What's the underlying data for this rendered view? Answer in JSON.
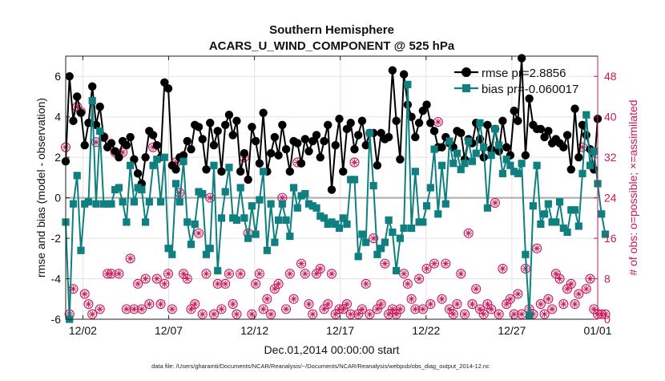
{
  "chart_data": {
    "type": "line",
    "title": "Southern Hemisphere",
    "subtitle": "ACARS_U_WIND_COMPONENT @ 525 hPa",
    "xlabel": "Dec.01,2014 00:00:00 start",
    "ylabel": "rmse and bias (model - observation)",
    "ylabel_right": "# of obs: o=possible; ×=assimilated",
    "footnote": "data file: /Users/gharamti/Documents/NCAR/Reanalysis/~/Documents/NCAR/Reanalysis/webpub/obs_diag_output_2014-12.nc",
    "x_start_day": 1,
    "x_end_day": 32,
    "xlim": [
      1.0,
      32.0
    ],
    "ylim": [
      -6,
      7
    ],
    "ylim_right": [
      0,
      52
    ],
    "x_ticks": [
      {
        "day": 2,
        "label": "12/02"
      },
      {
        "day": 7,
        "label": "12/07"
      },
      {
        "day": 12,
        "label": "12/12"
      },
      {
        "day": 17,
        "label": "12/17"
      },
      {
        "day": 22,
        "label": "12/22"
      },
      {
        "day": 27,
        "label": "12/27"
      },
      {
        "day": 32,
        "label": "01/01"
      }
    ],
    "y_ticks": [
      -6,
      -4,
      -2,
      0,
      2,
      4,
      6
    ],
    "y_ticks_right": [
      0,
      8,
      16,
      24,
      32,
      40,
      48
    ],
    "grid": true,
    "zero_line": true,
    "legend_position": "top-right",
    "legend": [
      {
        "label": "rmse pr=2.8856",
        "color": "#000000",
        "marker": "circle"
      },
      {
        "label": "bias pr=-0.060017",
        "color": "#0f7f7f",
        "marker": "square"
      }
    ],
    "colors": {
      "rmse": "#000000",
      "bias": "#0f7f7f",
      "obs": "#c8185a",
      "zero": "#aaaaaa",
      "grid": "#e3e3e3"
    },
    "series": [
      {
        "name": "rmse pr=2.8856",
        "values": [
          1.8,
          6.0,
          3.8,
          5.0,
          4.2,
          2.6,
          3.7,
          5.5,
          3.6,
          4.5,
          3.0,
          2.5,
          2.7,
          2.3,
          2.0,
          2.8,
          2.6,
          3.0,
          1.9,
          1.2,
          0.7,
          2.0,
          3.3,
          3.1,
          2.6,
          2.0,
          5.7,
          5.4,
          1.6,
          1.4,
          2.0,
          2.1,
          2.8,
          2.4,
          3.6,
          3.5,
          2.9,
          1.4,
          3.7,
          2.6,
          3.3,
          1.3,
          3.6,
          4.1,
          3.1,
          3.8,
          1.3,
          2.2,
          0.9,
          3.5,
          2.8,
          1.7,
          4.2,
          1.3,
          2.2,
          3.0,
          2.1,
          3.6,
          2.4,
          1.3,
          2.8,
          2.7,
          1.7,
          2.9,
          2.3,
          2.8,
          3.1,
          2.0,
          2.8,
          3.6,
          0.4,
          2.6,
          3.9,
          1.3,
          3.4,
          3.7,
          2.4,
          3.1,
          3.8,
          2.6,
          3.2,
          3.2,
          1.6,
          3.2,
          2.9,
          3.0,
          6.3,
          3.8,
          1.9,
          6.1,
          4.6,
          4.0,
          3.0,
          3.7,
          4.3,
          4.6,
          3.7,
          3.3,
          2.5,
          2.5,
          3.0,
          2.7,
          2.5,
          3.3,
          3.2,
          1.9,
          2.9,
          2.7,
          3.7,
          2.9,
          2.0,
          3.6,
          2.4,
          3.4,
          2.3,
          3.8,
          2.5,
          2.1,
          4.3,
          3.8,
          6.9,
          2.1,
          4.9,
          3.6,
          3.4,
          3.4,
          3.0,
          3.3,
          2.7,
          2.9,
          2.7,
          2.5,
          3.1,
          1.4,
          4.4,
          2.0,
          3.6,
          3.1,
          2.4,
          1.4,
          3.9
        ],
        "color": "#000000"
      },
      {
        "name": "bias pr=-0.060017",
        "values": [
          -1.2,
          -6.0,
          -0.3,
          1.1,
          -2.6,
          -0.3,
          -0.2,
          4.8,
          -0.3,
          3.3,
          -0.3,
          -0.3,
          -0.3,
          0.4,
          0.5,
          -0.2,
          -1.2,
          1.6,
          -0.2,
          0.5,
          0.4,
          -1.2,
          -0.2,
          1.6,
          1.9,
          -0.2,
          2.0,
          -2.5,
          -2.8,
          0.7,
          -0.2,
          1.8,
          -1.2,
          -2.3,
          -1.3,
          0.3,
          0.2,
          -2.8,
          -2.5,
          1.6,
          -3.6,
          -1.0,
          0.3,
          1.5,
          -1.0,
          -1.1,
          0.5,
          -1.0,
          -2.0,
          -0.4,
          -1.8,
          -0.1,
          1.3,
          -2.6,
          -0.3,
          -2.2,
          -1.1,
          -0.3,
          -1.1,
          -1.9,
          0.5,
          -0.5,
          0.1,
          0.2,
          -0.3,
          -0.4,
          -0.5,
          -0.9,
          -1.0,
          -1.3,
          -1.2,
          -1.3,
          -1.5,
          -1.0,
          -1.3,
          0.9,
          0.9,
          -2.9,
          -1.8,
          -2.2,
          3.2,
          0.6,
          -2.8,
          -2.5,
          -2.2,
          -1.1,
          -1.7,
          -3.6,
          -2.0,
          -1.5,
          5.6,
          -1.5,
          1.3,
          -1.2,
          -1.2,
          -0.4,
          0.5,
          2.4,
          -0.8,
          1.6,
          -0.3,
          2.8,
          1.7,
          2.2,
          1.4,
          1.7,
          2.8,
          1.8,
          2.2,
          3.7,
          2.5,
          -0.5,
          2.1,
          3.4,
          2.6,
          1.2,
          1.9,
          1.6,
          1.3,
          1.2,
          1.7,
          -2.8,
          -5.8,
          -0.4,
          1.6,
          -1.3,
          -0.8,
          -0.3,
          -1.2,
          -1.2,
          -0.2,
          -1.5,
          -1.7,
          -0.6,
          -0.6,
          -1.4,
          1.2,
          4.1,
          1.6,
          2.3,
          0.7,
          -0.8,
          -1.8
        ],
        "color": "#0f7f7f"
      },
      {
        "name": "possible",
        "values": [
          34,
          1,
          6,
          42,
          41,
          5,
          3,
          1,
          35,
          2,
          36,
          9,
          9,
          33,
          9,
          33,
          2,
          12,
          2,
          7,
          2,
          8,
          3,
          34,
          8,
          3,
          7,
          9,
          2,
          31,
          25,
          9,
          8,
          2,
          3,
          17,
          1,
          9,
          24,
          1,
          7,
          2,
          7,
          9,
          3,
          1,
          9,
          32,
          17,
          1,
          7,
          9,
          2,
          4,
          1,
          6,
          7,
          24,
          2,
          9,
          4,
          31,
          11,
          9,
          3,
          1,
          9,
          10,
          2,
          3,
          9,
          1,
          2,
          2,
          3,
          1,
          31,
          1,
          2,
          7,
          1,
          16,
          2,
          3,
          11,
          1,
          2,
          1,
          2,
          9,
          7,
          4,
          2,
          8,
          2,
          10,
          3,
          11,
          39,
          4,
          11,
          2,
          1,
          3,
          9,
          1,
          17,
          3,
          6,
          2,
          1,
          3,
          2,
          23,
          1,
          10,
          3,
          4,
          1,
          5,
          1,
          10,
          2,
          1,
          14,
          3,
          1,
          4,
          2,
          9,
          8,
          3,
          6,
          7,
          3,
          5,
          34,
          6,
          8,
          2,
          1,
          1,
          1
        ],
        "color": "#c8185a"
      },
      {
        "name": "assimilated",
        "values": [
          34,
          1,
          6,
          42,
          41,
          5,
          3,
          1,
          35,
          2,
          36,
          9,
          9,
          33,
          9,
          33,
          2,
          12,
          2,
          7,
          2,
          8,
          3,
          34,
          8,
          3,
          7,
          9,
          2,
          31,
          25,
          9,
          8,
          2,
          3,
          17,
          1,
          9,
          24,
          1,
          7,
          2,
          7,
          9,
          3,
          1,
          9,
          32,
          17,
          1,
          7,
          9,
          2,
          4,
          1,
          6,
          7,
          24,
          2,
          9,
          4,
          31,
          11,
          9,
          3,
          1,
          9,
          10,
          2,
          3,
          9,
          1,
          2,
          2,
          3,
          1,
          31,
          1,
          2,
          7,
          1,
          16,
          2,
          3,
          11,
          1,
          2,
          1,
          2,
          9,
          7,
          4,
          2,
          8,
          2,
          10,
          3,
          11,
          39,
          4,
          11,
          2,
          1,
          3,
          9,
          1,
          17,
          3,
          6,
          2,
          1,
          3,
          2,
          23,
          1,
          10,
          3,
          4,
          1,
          5,
          1,
          10,
          2,
          1,
          14,
          3,
          1,
          4,
          2,
          9,
          8,
          3,
          6,
          7,
          3,
          5,
          34,
          6,
          8,
          2,
          1,
          1,
          1
        ],
        "color": "#c8185a"
      }
    ]
  }
}
